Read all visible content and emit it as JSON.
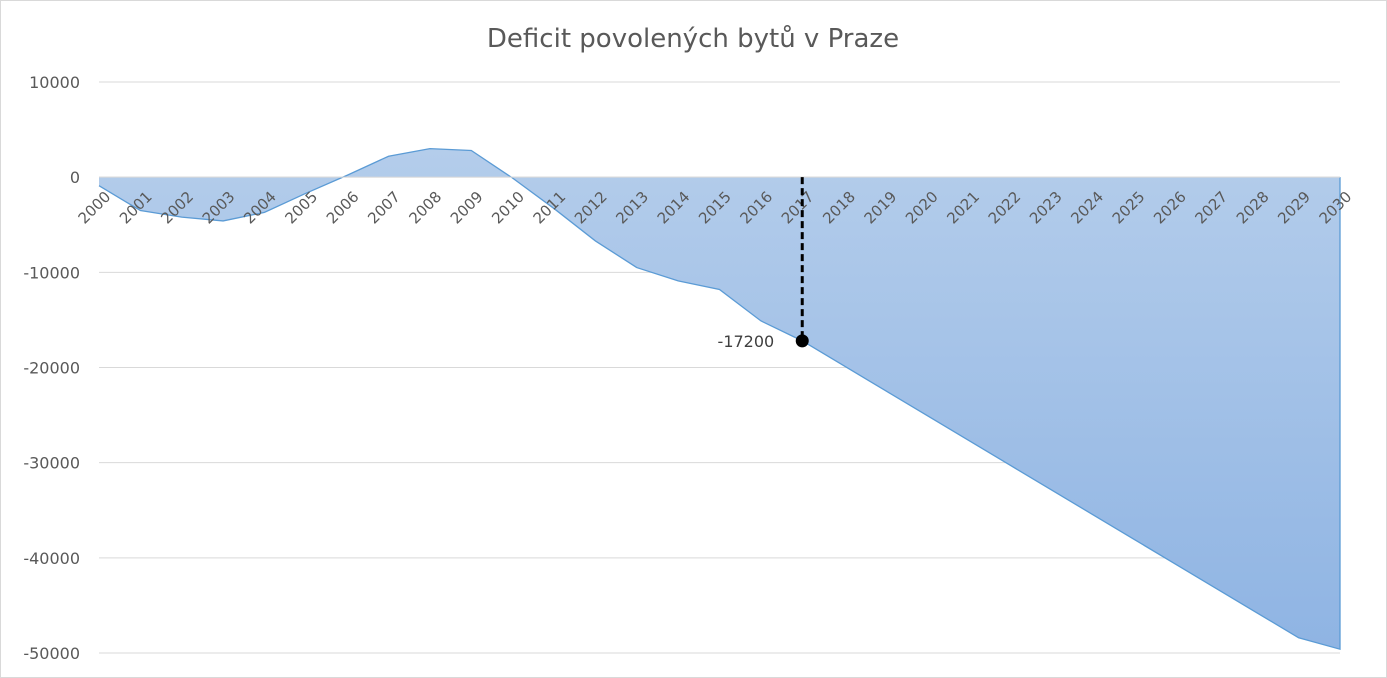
{
  "chart_data": {
    "type": "area",
    "title": "Deficit povolených bytů v Praze",
    "xlabel": "",
    "ylabel": "",
    "ylim": [
      -50000,
      10000
    ],
    "yticks": [
      10000,
      0,
      -10000,
      -20000,
      -30000,
      -40000,
      -50000
    ],
    "grid": true,
    "legend": "none",
    "colors": {
      "fill_top": "#b4cdeb",
      "fill_bottom": "#8fb4e3",
      "line": "#5b9bd5",
      "annotation": "#000000"
    },
    "x": [
      2000,
      2001,
      2002,
      2003,
      2004,
      2005,
      2006,
      2007,
      2008,
      2009,
      2010,
      2011,
      2012,
      2013,
      2014,
      2015,
      2016,
      2017,
      2018,
      2019,
      2020,
      2021,
      2022,
      2023,
      2024,
      2025,
      2026,
      2027,
      2028,
      2029,
      2030
    ],
    "series": [
      {
        "values": [
          -900,
          -3500,
          -4200,
          -4600,
          -3700,
          -1700,
          200,
          2200,
          3000,
          2800,
          -100,
          -3300,
          -6700,
          -9500,
          -10900,
          -11800,
          -15100,
          -17200,
          -19800,
          -22400,
          -25000,
          -27600,
          -30200,
          -32800,
          -35400,
          -38000,
          -40600,
          -43200,
          -45800,
          -48400,
          -49600
        ]
      }
    ],
    "annotations": [
      {
        "x": 2017,
        "y": -17200,
        "label": "-17200",
        "style": "dashed-drop-line-with-marker"
      }
    ]
  }
}
